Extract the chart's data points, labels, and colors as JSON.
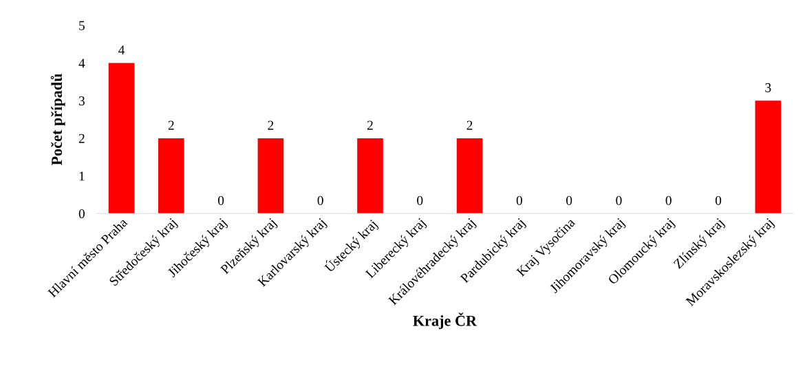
{
  "chart_data": {
    "type": "bar",
    "xlabel": "Kraje ČR",
    "ylabel": "Počet případů",
    "categories": [
      "Hlavní město Praha",
      "Středočeský kraj",
      "Jihočeský kraj",
      "Plzeňský kraj",
      "Karlovarský kraj",
      "Ústecký kraj",
      "Liberecký kraj",
      "Královéhradecký kraj",
      "Pardubický kraj",
      "Kraj Vysočina",
      "Jihomoravský kraj",
      "Olomoucký kraj",
      "Zlínský kraj",
      "Moravskoslezský kraj"
    ],
    "values": [
      4,
      2,
      0,
      2,
      0,
      2,
      0,
      2,
      0,
      0,
      0,
      0,
      0,
      3
    ],
    "color": "#ff0000",
    "ylim": [
      0,
      5
    ],
    "yticks": [
      0,
      1,
      2,
      3,
      4,
      5
    ],
    "grid": false,
    "data_labels": true
  }
}
